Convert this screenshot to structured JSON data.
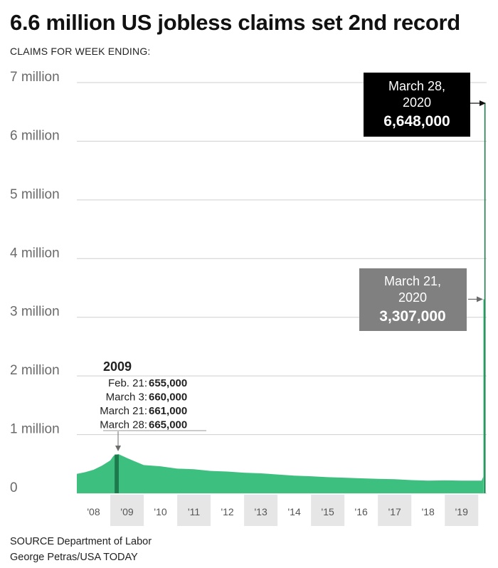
{
  "title": "6.6 million US jobless claims set 2nd record",
  "subtitle": "CLAIMS FOR WEEK ENDING:",
  "footer": {
    "source": "SOURCE Department of Labor",
    "credit": "George Petras/USA TODAY"
  },
  "colors": {
    "area": "#3dbf7f",
    "area_dark": "#1d7a4c",
    "grid": "#cfcfcf",
    "band": "#e6e6e6",
    "callout_record": "#000000",
    "callout_prior": "#808080",
    "arrow": "#6b6b6b"
  },
  "chart_data": {
    "type": "area",
    "title": "6.6 million US jobless claims set 2nd record",
    "subtitle": "CLAIMS FOR WEEK ENDING:",
    "y_ticks": [
      {
        "value": 0,
        "label": "0"
      },
      {
        "value": 1000000,
        "label": "1 million"
      },
      {
        "value": 2000000,
        "label": "2 million"
      },
      {
        "value": 3000000,
        "label": "3 million"
      },
      {
        "value": 4000000,
        "label": "4 million"
      },
      {
        "value": 5000000,
        "label": "5 million"
      },
      {
        "value": 6000000,
        "label": "6 million"
      },
      {
        "value": 7000000,
        "label": "7 million"
      }
    ],
    "ylim": [
      0,
      7000000
    ],
    "xlim": [
      2008,
      2020.25
    ],
    "x_ticks": [
      "'08",
      "'09",
      "'10",
      "'11",
      "'12",
      "'13",
      "'14",
      "'15",
      "'16",
      "'17",
      "'18",
      "'19"
    ],
    "grid": true,
    "series": [
      {
        "x": [
          2008.0,
          2008.25,
          2008.5,
          2008.75,
          2009.0,
          2009.1,
          2009.18,
          2009.25,
          2009.5,
          2009.75,
          2010.0,
          2010.5,
          2011.0,
          2011.5,
          2012.0,
          2012.5,
          2013.0,
          2013.5,
          2014.0,
          2014.5,
          2015.0,
          2015.5,
          2016.0,
          2016.5,
          2017.0,
          2017.5,
          2018.0,
          2018.5,
          2019.0,
          2019.5,
          2019.9,
          2020.1,
          2020.15
        ],
        "y": [
          330000,
          360000,
          400000,
          470000,
          560000,
          640000,
          660000,
          665000,
          600000,
          540000,
          480000,
          460000,
          420000,
          410000,
          380000,
          370000,
          350000,
          340000,
          320000,
          300000,
          290000,
          275000,
          265000,
          255000,
          245000,
          240000,
          225000,
          215000,
          220000,
          215000,
          215000,
          215000,
          280000
        ]
      }
    ],
    "highlights": [
      {
        "x": 2020.17,
        "y": 3307000
      },
      {
        "x": 2020.2,
        "y": 6648000
      }
    ],
    "annotations": {
      "year_2009": {
        "heading": "2009",
        "rows": [
          {
            "date": "Feb. 21:",
            "value": "655,000"
          },
          {
            "date": "March 3:",
            "value": "660,000"
          },
          {
            "date": "March 21:",
            "value": "661,000"
          },
          {
            "date": "March 28:",
            "value": "665,000"
          }
        ]
      },
      "record": {
        "date_line1": "March 28,",
        "date_line2": "2020",
        "value": "6,648,000"
      },
      "prior": {
        "date_line1": "March 21,",
        "date_line2": "2020",
        "value": "3,307,000"
      }
    }
  }
}
